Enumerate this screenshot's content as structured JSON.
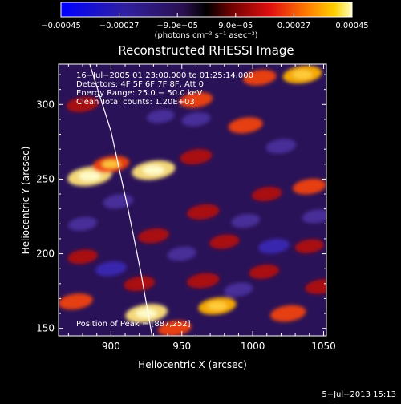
{
  "chart_data": {
    "type": "heatmap",
    "title": "Reconstructed RHESSI Image",
    "xlabel": "Heliocentric X (arcsec)",
    "ylabel": "Heliocentric Y (arcsec)",
    "xlim": [
      863,
      1052
    ],
    "ylim": [
      145,
      327
    ],
    "x_ticks": [
      {
        "value": 900,
        "label": "900"
      },
      {
        "value": 950,
        "label": "950"
      },
      {
        "value": 1000,
        "label": "1000"
      },
      {
        "value": 1050,
        "label": "1050"
      }
    ],
    "y_ticks": [
      {
        "value": 150,
        "label": "150"
      },
      {
        "value": 200,
        "label": "200"
      },
      {
        "value": 250,
        "label": "250"
      },
      {
        "value": 300,
        "label": "300"
      }
    ],
    "colorbar": {
      "min": -0.00045,
      "max": 0.00045,
      "unit_label": "(photons cm⁻² s⁻¹ asec⁻²)",
      "ticks": [
        {
          "value": -0.00045,
          "label": "−0.00045"
        },
        {
          "value": -0.00027,
          "label": "−0.00027"
        },
        {
          "value": -9e-05,
          "label": "−9.0e−05"
        },
        {
          "value": 9e-05,
          "label": "9.0e−05"
        },
        {
          "value": 0.00027,
          "label": "0.00027"
        },
        {
          "value": 0.00045,
          "label": "0.00045"
        }
      ]
    },
    "annotations": [
      "16−Jul−2005 01:23:00.000 to 01:25:14.000",
      "Detectors: 4F 5F 6F 7F 8F, Att 0",
      "Energy Range: 25.0 − 50.0 keV",
      "Clean    Total counts: 1.20E+03"
    ],
    "peak_label": "Position of Peak = [887,252]",
    "peak": {
      "x": 887,
      "y": 252
    },
    "limb_curve": [
      {
        "x": 884,
        "y": 330
      },
      {
        "x": 900,
        "y": 282
      },
      {
        "x": 912,
        "y": 230
      },
      {
        "x": 921,
        "y": 188
      },
      {
        "x": 929,
        "y": 145
      }
    ],
    "blobs": [
      {
        "x": 885,
        "y": 252,
        "v": 1.0
      },
      {
        "x": 900,
        "y": 260,
        "v": 0.65
      },
      {
        "x": 930,
        "y": 256,
        "v": 0.95
      },
      {
        "x": 960,
        "y": 265,
        "v": 0.45
      },
      {
        "x": 1035,
        "y": 320,
        "v": 0.75
      },
      {
        "x": 1005,
        "y": 318,
        "v": 0.5
      },
      {
        "x": 960,
        "y": 303,
        "v": 0.5
      },
      {
        "x": 995,
        "y": 286,
        "v": 0.55
      },
      {
        "x": 880,
        "y": 300,
        "v": 0.45
      },
      {
        "x": 1040,
        "y": 245,
        "v": 0.5
      },
      {
        "x": 1010,
        "y": 240,
        "v": 0.35
      },
      {
        "x": 965,
        "y": 228,
        "v": 0.45
      },
      {
        "x": 930,
        "y": 212,
        "v": 0.4
      },
      {
        "x": 980,
        "y": 208,
        "v": 0.35
      },
      {
        "x": 1040,
        "y": 205,
        "v": 0.3
      },
      {
        "x": 880,
        "y": 198,
        "v": 0.35
      },
      {
        "x": 920,
        "y": 180,
        "v": 0.4
      },
      {
        "x": 965,
        "y": 182,
        "v": 0.45
      },
      {
        "x": 1008,
        "y": 188,
        "v": 0.35
      },
      {
        "x": 875,
        "y": 168,
        "v": 0.55
      },
      {
        "x": 925,
        "y": 160,
        "v": 0.9
      },
      {
        "x": 975,
        "y": 165,
        "v": 0.7
      },
      {
        "x": 1025,
        "y": 160,
        "v": 0.6
      },
      {
        "x": 1048,
        "y": 178,
        "v": 0.4
      },
      {
        "x": 945,
        "y": 150,
        "v": 0.5
      },
      {
        "x": 905,
        "y": 235,
        "v": -0.35
      },
      {
        "x": 960,
        "y": 290,
        "v": -0.3
      },
      {
        "x": 1020,
        "y": 272,
        "v": -0.35
      },
      {
        "x": 880,
        "y": 220,
        "v": -0.3
      },
      {
        "x": 995,
        "y": 222,
        "v": -0.3
      },
      {
        "x": 900,
        "y": 190,
        "v": -0.4
      },
      {
        "x": 950,
        "y": 200,
        "v": -0.3
      },
      {
        "x": 1015,
        "y": 205,
        "v": -0.4
      },
      {
        "x": 1045,
        "y": 225,
        "v": -0.3
      },
      {
        "x": 935,
        "y": 292,
        "v": -0.25
      },
      {
        "x": 990,
        "y": 176,
        "v": -0.3
      }
    ]
  },
  "footer": {
    "date_stamp": "5−Jul−2013 15:13"
  }
}
